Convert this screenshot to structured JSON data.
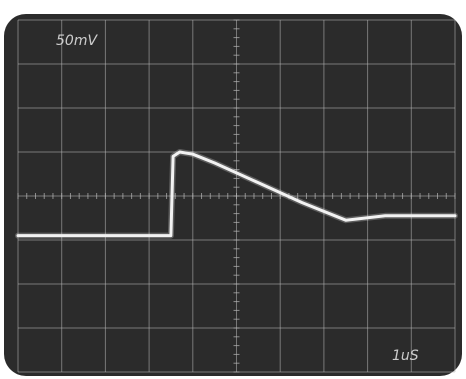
{
  "chart_data": {
    "type": "line",
    "title": "",
    "xlabel": "",
    "ylabel": "",
    "grid": true,
    "grid_divisions": {
      "horizontal": 10,
      "vertical": 8
    },
    "labels": {
      "vertical_scale": "50mV",
      "time_scale": "1uS"
    },
    "xlim": [
      0,
      10
    ],
    "ylim": [
      -4,
      4
    ],
    "series": [
      {
        "x": [
          0.0,
          3.5,
          3.55,
          3.7,
          4.0,
          4.5,
          5.5,
          6.5,
          7.5,
          8.4,
          8.6,
          9.0,
          10.0
        ],
        "y": [
          -0.9,
          -0.9,
          0.9,
          1.0,
          0.95,
          0.75,
          0.3,
          -0.15,
          -0.55,
          -0.45,
          -0.45,
          -0.45,
          -0.45
        ]
      }
    ],
    "colors": {
      "screen": "#2b2b2b",
      "grid": "#b8b8b8",
      "trace": "#f2f2f2",
      "bezel": "#ffffff"
    }
  }
}
